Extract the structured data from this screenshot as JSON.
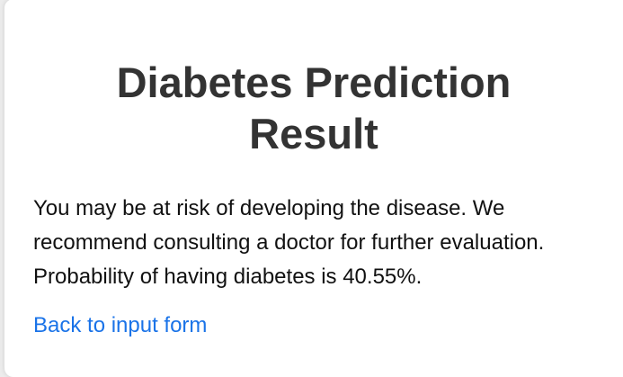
{
  "result": {
    "title_line1": "Diabetes Prediction",
    "title_line2": "Result",
    "message_line1": "You may be at risk of developing the disease. We",
    "message_line2": "recommend consulting a doctor for further evaluation.",
    "message_line3": "Probability of having diabetes is 40.55%.",
    "back_link": "Back to input form"
  },
  "colors": {
    "title": "#333333",
    "text": "#111111",
    "link": "#1a73e8",
    "card_background": "#ffffff",
    "page_background": "#ececec"
  }
}
